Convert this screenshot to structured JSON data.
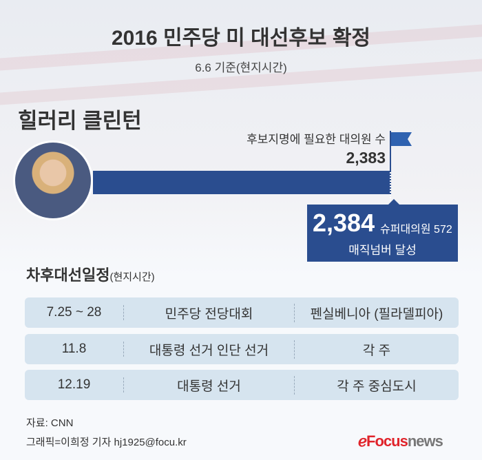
{
  "title": "2016 민주당 미 대선후보 확정",
  "subtitle": "6.6 기준(현지시간)",
  "candidate": "힐러리 클린턴",
  "needed_label": "후보지명에 필요한 대의원 수",
  "needed_value": "2,383",
  "achieved_value": "2,384",
  "superdelegates": "슈퍼대의원 572",
  "magic_number": "매직넘버 달성",
  "colors": {
    "bar": "#2a4d8f",
    "row": "#d6e4ef",
    "logo": "#e0242b"
  },
  "schedule": {
    "title": "차후대선일정",
    "title_note": "(현지시간)",
    "rows": [
      {
        "date": "7.25 ~ 28",
        "event": "민주당 전당대회",
        "place": "펜실베니아 (필라델피아)"
      },
      {
        "date": "11.8",
        "event": "대통령 선거 인단 선거",
        "place": "각 주"
      },
      {
        "date": "12.19",
        "event": "대통령 선거",
        "place": "각 주 중심도시"
      }
    ]
  },
  "source": "자료: CNN",
  "credit": "그래픽=이희정 기자 hj1925@focu.kr",
  "logo": {
    "a": "Focus",
    "b": "news"
  }
}
